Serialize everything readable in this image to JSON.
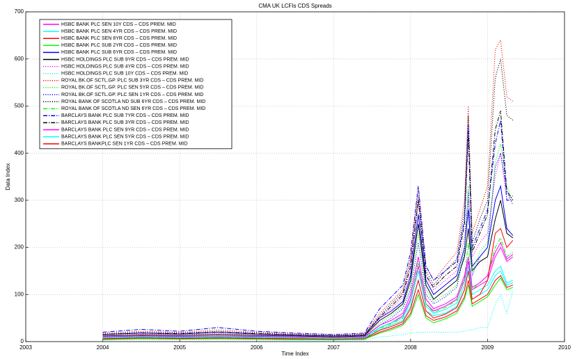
{
  "chart_data": {
    "type": "line",
    "title": "CMA UK LCFIs CDS Spreads",
    "x_label": "Time Index",
    "y_label": "Data Index",
    "xlim": [
      2003,
      2010
    ],
    "xticks": [
      2003,
      2004,
      2005,
      2006,
      2007,
      2008,
      2009,
      2010
    ],
    "ylim": [
      0,
      700
    ],
    "yticks": [
      0,
      100,
      200,
      300,
      400,
      500,
      600,
      700
    ],
    "grid": true,
    "legend": "upper left",
    "x": [
      2004,
      2004.5,
      2005,
      2005.5,
      2006,
      2006.5,
      2007,
      2007.4,
      2007.6,
      2007.75,
      2007.9,
      2008,
      2008.1,
      2008.2,
      2008.3,
      2008.45,
      2008.6,
      2008.7,
      2008.75,
      2008.8,
      2008.9,
      2009,
      2009.1,
      2009.17,
      2009.25,
      2009.33
    ],
    "series": [
      {
        "name": "HSBC BANK PLC SEN 10Y CDS – CDS PREM. MID",
        "color": "#ff00ff",
        "dash": "solid",
        "values": [
          8,
          10,
          9,
          10,
          9,
          8,
          7,
          8,
          30,
          40,
          55,
          90,
          160,
          80,
          65,
          75,
          90,
          130,
          170,
          110,
          120,
          130,
          180,
          200,
          170,
          180
        ]
      },
      {
        "name": "HSBC BANK PLC SEN 4YR CDS – CDS PREM. MID",
        "color": "#00ffff",
        "dash": "solid",
        "values": [
          6,
          8,
          7,
          8,
          7,
          6,
          5,
          6,
          25,
          35,
          45,
          75,
          130,
          65,
          55,
          60,
          75,
          110,
          150,
          90,
          100,
          110,
          140,
          150,
          120,
          125
        ]
      },
      {
        "name": "HSBC BANK PLC SEN 8YR CDS – CDS PREM. MID",
        "color": "#ff0000",
        "dash": "solid",
        "values": [
          5,
          7,
          6,
          7,
          6,
          5,
          4,
          5,
          20,
          28,
          38,
          60,
          110,
          55,
          45,
          52,
          65,
          95,
          130,
          80,
          90,
          100,
          130,
          140,
          115,
          120
        ]
      },
      {
        "name": "HSBC BANK PLC SUB 2YR CDS – CDS PREM. MID",
        "color": "#00ff00",
        "dash": "solid",
        "values": [
          4,
          6,
          5,
          6,
          5,
          4,
          4,
          5,
          18,
          25,
          35,
          55,
          100,
          50,
          40,
          48,
          60,
          90,
          120,
          75,
          85,
          95,
          120,
          135,
          110,
          115
        ]
      },
      {
        "name": "HSBC BANK PLC SUB 6YR CDS – CDS PREM. MID",
        "color": "#0000ff",
        "dash": "solid",
        "values": [
          15,
          18,
          16,
          20,
          16,
          14,
          12,
          14,
          50,
          65,
          85,
          140,
          270,
          130,
          100,
          120,
          140,
          200,
          280,
          160,
          180,
          200,
          300,
          330,
          240,
          225
        ]
      },
      {
        "name": "HSBC HOLDINGS PLC SUB 9YR CDS – CDS PREM. MID",
        "color": "#000000",
        "dash": "solid",
        "values": [
          12,
          14,
          13,
          15,
          13,
          12,
          10,
          12,
          45,
          60,
          80,
          130,
          250,
          120,
          90,
          110,
          130,
          180,
          240,
          150,
          170,
          180,
          260,
          300,
          230,
          220
        ]
      },
      {
        "name": "HSBC HOLDINGS PLC SUB 4YR CDS – CDS PREM. MID",
        "color": "#ff00ff",
        "dash": "dotted",
        "values": [
          14,
          16,
          15,
          17,
          15,
          13,
          11,
          13,
          50,
          70,
          95,
          150,
          300,
          140,
          110,
          130,
          150,
          220,
          300,
          180,
          210,
          230,
          350,
          400,
          300,
          310
        ]
      },
      {
        "name": "HSBC HOLDINGS PLC SUB 10Y CDS – CDS PREM. MID",
        "color": "#00ffff",
        "dash": "dotted",
        "values": [
          3,
          4,
          4,
          4,
          3,
          3,
          3,
          3,
          10,
          12,
          15,
          18,
          20,
          20,
          20,
          20,
          20,
          22,
          25,
          25,
          30,
          30,
          80,
          100,
          60,
          110
        ]
      },
      {
        "name": "ROYAL BK.OF SCTL.GP. PLC SUB 3YR CDS – CDS PREM. MID",
        "color": "#ff0000",
        "dash": "dotted",
        "values": [
          18,
          22,
          20,
          25,
          20,
          17,
          15,
          17,
          60,
          85,
          110,
          180,
          330,
          160,
          130,
          160,
          190,
          300,
          500,
          230,
          280,
          330,
          620,
          640,
          520,
          510
        ]
      },
      {
        "name": "ROYAL BK.OF SCTL.GP. PLC SEN 5YR CDS – CDS PREM. MID",
        "color": "#00ff00",
        "dash": "dotted",
        "values": [
          10,
          12,
          11,
          13,
          11,
          10,
          9,
          10,
          40,
          55,
          75,
          120,
          230,
          110,
          85,
          100,
          120,
          200,
          330,
          150,
          190,
          210,
          380,
          420,
          330,
          300
        ]
      },
      {
        "name": "ROYAL BK.OF SCTL.GP. PLC SEN 1YR CDS – CDS PREM. MID",
        "color": "#0000ff",
        "dash": "dotted",
        "values": [
          9,
          11,
          10,
          12,
          10,
          9,
          8,
          9,
          35,
          50,
          70,
          110,
          210,
          100,
          80,
          95,
          115,
          190,
          320,
          140,
          180,
          200,
          370,
          400,
          320,
          290
        ]
      },
      {
        "name": "ROYAL BANK OF SCOTLA ND SUB 6YR CDS – CDS PREM. MID",
        "color": "#000000",
        "dash": "dotted",
        "values": [
          16,
          20,
          18,
          22,
          18,
          15,
          13,
          15,
          55,
          80,
          105,
          170,
          310,
          150,
          120,
          150,
          175,
          280,
          480,
          210,
          260,
          300,
          560,
          600,
          480,
          470
        ]
      },
      {
        "name": "ROYAL BANK OF SCOTLA ND SEN 6YR CDS – CDS PREM. MID",
        "color": "#00ff00",
        "dash": "dashdot",
        "values": [
          7,
          9,
          8,
          9,
          8,
          7,
          6,
          7,
          28,
          38,
          50,
          85,
          170,
          80,
          62,
          72,
          88,
          135,
          210,
          110,
          125,
          140,
          200,
          220,
          180,
          190
        ]
      },
      {
        "name": "BARCLAYS BANK PLC SUB 7YR CDS – CDS PREM. MID",
        "color": "#0000ff",
        "dash": "dashdot",
        "values": [
          20,
          26,
          22,
          30,
          22,
          18,
          15,
          18,
          70,
          95,
          120,
          190,
          330,
          160,
          130,
          150,
          170,
          260,
          460,
          200,
          240,
          280,
          420,
          470,
          300,
          300
        ]
      },
      {
        "name": "BARCLAYS BANK PLC SUB 3YR CDS – CDS PREM. MID",
        "color": "#000000",
        "dash": "dashdot",
        "values": [
          15,
          18,
          17,
          20,
          17,
          14,
          12,
          14,
          52,
          75,
          100,
          160,
          300,
          140,
          115,
          140,
          160,
          250,
          440,
          190,
          230,
          270,
          450,
          490,
          320,
          300
        ]
      },
      {
        "name": "BARCLAYS BANK PLC SEN 9YR CDS – CDS PREM. MID",
        "color": "#ff00ff",
        "dash": "solid",
        "values": [
          10,
          12,
          11,
          12,
          11,
          10,
          8,
          10,
          35,
          45,
          60,
          100,
          180,
          90,
          70,
          80,
          95,
          140,
          180,
          115,
          125,
          140,
          190,
          210,
          175,
          185
        ]
      },
      {
        "name": "BARCLAYS BANK PLC SEN 5YR CDS – CDS PREM. MID",
        "color": "#00ffff",
        "dash": "solid",
        "values": [
          8,
          10,
          9,
          10,
          9,
          8,
          7,
          8,
          30,
          40,
          52,
          85,
          150,
          75,
          60,
          68,
          82,
          120,
          160,
          100,
          110,
          120,
          150,
          160,
          125,
          130
        ]
      },
      {
        "name": "BARCLAYS BANKPLC SEN 1YR CDS – CDS PREM. MID",
        "color": "#ff0000",
        "dash": "solid",
        "values": [
          6,
          8,
          7,
          8,
          7,
          6,
          5,
          6,
          24,
          32,
          42,
          70,
          130,
          65,
          50,
          58,
          72,
          110,
          150,
          90,
          100,
          130,
          230,
          240,
          200,
          215
        ]
      }
    ]
  }
}
